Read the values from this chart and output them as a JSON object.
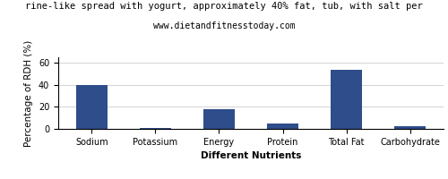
{
  "title_line1": "rine-like spread with yogurt, approximately 40% fat, tub, with salt per",
  "title_line2": "www.dietandfitnesstoday.com",
  "xlabel": "Different Nutrients",
  "ylabel": "Percentage of RDH (%)",
  "categories": [
    "Sodium",
    "Potassium",
    "Energy",
    "Protein",
    "Total Fat",
    "Carbohydrate"
  ],
  "values": [
    39.5,
    1.2,
    17.5,
    5.0,
    54.0,
    2.5
  ],
  "bar_color": "#2e4d8a",
  "ylim": [
    0,
    65
  ],
  "yticks": [
    0,
    20,
    40,
    60
  ],
  "background_color": "#ffffff",
  "grid_color": "#cccccc",
  "title_fontsize": 7.5,
  "subtitle_fontsize": 7,
  "axis_label_fontsize": 7.5,
  "tick_fontsize": 7
}
